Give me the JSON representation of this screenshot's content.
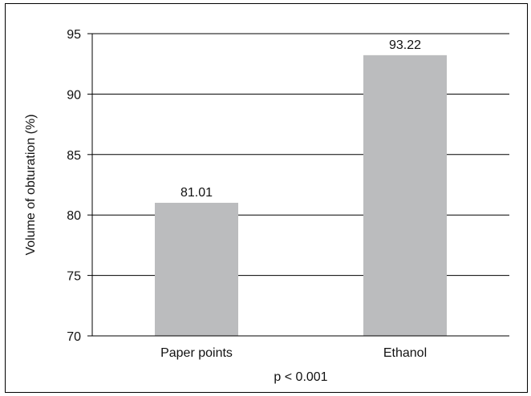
{
  "chart_data": {
    "type": "bar",
    "categories": [
      "Paper points",
      "Ethanol"
    ],
    "values": [
      81.01,
      93.22
    ],
    "value_labels": [
      "81.01",
      "93.22"
    ],
    "ylabel": "Volume of obturation (%)",
    "xlabel": "",
    "annotation": "p < 0.001",
    "ylim": [
      70,
      95
    ],
    "yticks": [
      70,
      75,
      80,
      85,
      90,
      95
    ],
    "grid": "horizontal",
    "legend": "none",
    "colors": {
      "bar": "#bbbcbe",
      "grid": "#000000",
      "axis": "#000000"
    }
  }
}
